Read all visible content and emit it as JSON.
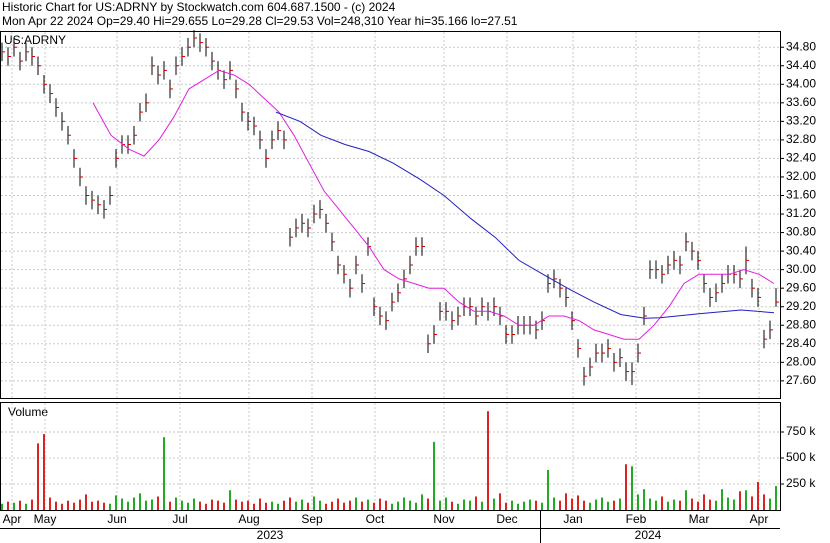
{
  "header": {
    "title": "Historic Chart for US:ADRNY by Stockwatch.com 604.687.1500 - (c) 2024",
    "subtitle": "Mon Apr 22 2024  Op=29.40  Hi=29.655  Lo=29.28  Cl=29.53  Vol=248,310  Year hi=35.166  lo=27.51"
  },
  "chart_data": [
    {
      "type": "ohlc",
      "label": "US:ADRNY",
      "color": "#000000",
      "close_color": "#cc0000",
      "grid": true,
      "xlim": [
        0,
        260
      ],
      "ylim": [
        27.23,
        35.15
      ],
      "yticks": [
        {
          "value": 27.6,
          "label": "27.60"
        },
        {
          "value": 28.0,
          "label": "28.00"
        },
        {
          "value": 28.4,
          "label": "28.40"
        },
        {
          "value": 28.8,
          "label": "28.80"
        },
        {
          "value": 29.2,
          "label": "29.20"
        },
        {
          "value": 29.6,
          "label": "29.60"
        },
        {
          "value": 30.0,
          "label": "30.00"
        },
        {
          "value": 30.4,
          "label": "30.40"
        },
        {
          "value": 30.8,
          "label": "30.80"
        },
        {
          "value": 31.2,
          "label": "31.20"
        },
        {
          "value": 31.6,
          "label": "31.60"
        },
        {
          "value": 32.0,
          "label": "32.00"
        },
        {
          "value": 32.4,
          "label": "32.40"
        },
        {
          "value": 32.8,
          "label": "32.80"
        },
        {
          "value": 33.2,
          "label": "33.20"
        },
        {
          "value": 33.6,
          "label": "33.60"
        },
        {
          "value": 34.0,
          "label": "34.00"
        },
        {
          "value": 34.4,
          "label": "34.40"
        },
        {
          "value": 34.8,
          "label": "34.80"
        }
      ],
      "x": [
        0,
        2,
        4,
        6,
        8,
        10,
        12,
        14,
        16,
        18,
        20,
        22,
        24,
        26,
        28,
        30,
        32,
        34,
        36,
        38,
        40,
        42,
        44,
        46,
        48,
        50,
        52,
        54,
        56,
        58,
        60,
        62,
        64,
        66,
        68,
        70,
        72,
        74,
        76,
        78,
        80,
        82,
        84,
        86,
        88,
        90,
        92,
        94,
        96,
        98,
        100,
        102,
        104,
        106,
        108,
        110,
        112,
        114,
        116,
        118,
        120,
        122,
        124,
        126,
        128,
        130,
        132,
        134,
        136,
        138,
        140,
        142,
        144,
        146,
        148,
        150,
        152,
        154,
        156,
        158,
        160,
        162,
        164,
        166,
        168,
        170,
        172,
        174,
        176,
        178,
        180,
        182,
        184,
        186,
        188,
        190,
        192,
        194,
        196,
        198,
        200,
        202,
        204,
        206,
        208,
        210,
        212,
        214,
        216,
        218,
        220,
        222,
        224,
        226,
        228,
        230,
        232,
        234,
        236,
        238,
        240,
        242,
        244,
        246,
        248,
        250,
        252,
        254,
        256,
        258
      ],
      "high": [
        34.9,
        34.8,
        35.0,
        34.7,
        34.9,
        34.8,
        34.6,
        34.2,
        34.0,
        33.7,
        33.4,
        33.1,
        32.6,
        32.2,
        31.8,
        31.7,
        31.6,
        31.5,
        31.8,
        32.6,
        32.9,
        32.9,
        33.1,
        33.6,
        33.8,
        34.6,
        34.4,
        34.5,
        34.1,
        34.6,
        34.8,
        35.0,
        35.17,
        35.1,
        35.0,
        34.7,
        34.5,
        34.3,
        34.5,
        34.1,
        33.6,
        33.4,
        33.3,
        33.0,
        32.6,
        33.0,
        33.2,
        33.0,
        30.9,
        31.1,
        31.2,
        31.1,
        31.4,
        31.5,
        31.2,
        30.8,
        30.3,
        30.1,
        29.8,
        30.3,
        29.9,
        30.7,
        29.4,
        29.2,
        29.1,
        29.5,
        29.7,
        30.0,
        30.3,
        30.7,
        30.7,
        28.6,
        28.8,
        29.3,
        29.3,
        29.1,
        29.2,
        29.4,
        29.4,
        29.2,
        29.4,
        29.3,
        29.4,
        29.2,
        28.8,
        28.8,
        29.0,
        29.0,
        29.0,
        28.9,
        29.1,
        29.9,
        30.0,
        29.8,
        29.6,
        29.1,
        28.5,
        27.9,
        28.1,
        28.4,
        28.4,
        28.5,
        28.2,
        28.3,
        28.0,
        28.0,
        28.4,
        29.2,
        30.2,
        30.2,
        30.1,
        30.3,
        30.4,
        30.3,
        30.8,
        30.6,
        30.4,
        29.9,
        29.6,
        29.7,
        29.9,
        30.1,
        30.1,
        30.0,
        30.5,
        29.8,
        29.6,
        28.7,
        28.9,
        29.6
      ],
      "low": [
        34.5,
        34.4,
        34.6,
        34.3,
        34.5,
        34.4,
        34.2,
        33.8,
        33.6,
        33.3,
        33.0,
        32.7,
        32.2,
        31.8,
        31.4,
        31.3,
        31.2,
        31.1,
        31.4,
        32.2,
        32.5,
        32.5,
        32.7,
        33.2,
        33.4,
        34.2,
        34.0,
        34.1,
        33.7,
        34.2,
        34.4,
        34.6,
        34.8,
        34.7,
        34.6,
        34.3,
        34.1,
        33.9,
        34.1,
        33.7,
        33.2,
        33.0,
        32.9,
        32.6,
        32.2,
        32.6,
        32.8,
        32.6,
        30.5,
        30.7,
        30.8,
        30.7,
        31.0,
        31.1,
        30.8,
        30.4,
        29.9,
        29.7,
        29.4,
        29.9,
        29.5,
        30.3,
        29.0,
        28.8,
        28.7,
        29.1,
        29.3,
        29.6,
        29.9,
        30.3,
        30.3,
        28.2,
        28.4,
        28.9,
        28.9,
        28.7,
        28.8,
        29.0,
        29.0,
        28.8,
        29.0,
        28.9,
        29.0,
        28.8,
        28.4,
        28.4,
        28.6,
        28.6,
        28.6,
        28.5,
        28.7,
        29.5,
        29.6,
        29.4,
        29.2,
        28.7,
        28.1,
        27.5,
        27.7,
        28.0,
        28.0,
        28.1,
        27.8,
        27.9,
        27.6,
        27.51,
        28.0,
        28.8,
        29.8,
        29.8,
        29.7,
        29.9,
        30.0,
        29.9,
        30.4,
        30.2,
        30.0,
        29.5,
        29.2,
        29.3,
        29.5,
        29.7,
        29.7,
        29.6,
        29.9,
        29.4,
        29.2,
        28.3,
        28.5,
        29.2
      ],
      "close": [
        34.7,
        34.6,
        34.8,
        34.5,
        34.7,
        34.6,
        34.4,
        34.0,
        33.8,
        33.5,
        33.2,
        32.9,
        32.4,
        32.0,
        31.6,
        31.5,
        31.4,
        31.3,
        31.6,
        32.4,
        32.7,
        32.7,
        32.9,
        33.4,
        33.6,
        34.4,
        34.2,
        34.3,
        33.9,
        34.4,
        34.6,
        34.8,
        35.0,
        34.9,
        34.8,
        34.5,
        34.3,
        34.1,
        34.3,
        33.9,
        33.4,
        33.2,
        33.1,
        32.8,
        32.4,
        32.8,
        33.0,
        32.8,
        30.7,
        30.9,
        31.0,
        30.9,
        31.2,
        31.3,
        31.0,
        30.6,
        30.1,
        29.9,
        29.6,
        30.1,
        29.7,
        30.5,
        29.2,
        29.0,
        28.9,
        29.3,
        29.5,
        29.8,
        30.1,
        30.5,
        30.5,
        28.4,
        28.6,
        29.1,
        29.1,
        28.9,
        29.0,
        29.2,
        29.2,
        29.0,
        29.2,
        29.1,
        29.2,
        29.0,
        28.6,
        28.6,
        28.8,
        28.8,
        28.8,
        28.7,
        28.9,
        29.7,
        29.8,
        29.6,
        29.4,
        28.9,
        28.3,
        27.7,
        27.9,
        28.2,
        28.2,
        28.3,
        28.0,
        28.1,
        27.8,
        27.8,
        28.2,
        29.0,
        30.0,
        30.0,
        29.9,
        30.1,
        30.2,
        30.1,
        30.6,
        30.4,
        30.2,
        29.7,
        29.4,
        29.5,
        29.7,
        29.9,
        29.9,
        29.8,
        30.2,
        29.6,
        29.4,
        28.5,
        28.7,
        29.3
      ],
      "lines": [
        {
          "color": "#e020e0",
          "x": [
            31,
            37,
            43,
            48,
            53,
            58,
            63,
            68,
            73,
            78,
            83,
            88,
            93,
            98,
            103,
            108,
            113,
            118,
            123,
            128,
            133,
            138,
            143,
            148,
            153,
            158,
            163,
            168,
            173,
            178,
            183,
            188,
            193,
            198,
            203,
            208,
            213,
            218,
            223,
            228,
            233,
            238,
            243,
            248,
            253,
            258
          ],
          "values": [
            33.6,
            32.9,
            32.6,
            32.45,
            32.8,
            33.3,
            33.9,
            34.1,
            34.3,
            34.2,
            34.0,
            33.7,
            33.4,
            32.9,
            32.3,
            31.7,
            31.3,
            30.9,
            30.5,
            30.0,
            29.8,
            29.7,
            29.6,
            29.6,
            29.3,
            29.1,
            29.1,
            29.0,
            28.8,
            28.8,
            29.0,
            29.0,
            28.9,
            28.7,
            28.6,
            28.5,
            28.5,
            28.8,
            29.2,
            29.7,
            29.9,
            29.9,
            29.9,
            30.0,
            29.9,
            29.7
          ]
        },
        {
          "color": "#2020c0",
          "x": [
            92,
            100,
            107,
            115,
            123,
            131,
            140,
            148,
            157,
            165,
            173,
            181,
            190,
            198,
            207,
            215,
            220,
            233,
            247,
            258
          ],
          "values": [
            33.4,
            33.2,
            32.9,
            32.7,
            32.55,
            32.3,
            31.95,
            31.6,
            31.1,
            30.7,
            30.2,
            29.9,
            29.57,
            29.3,
            29.03,
            28.95,
            28.96,
            29.05,
            29.13,
            29.07
          ]
        }
      ]
    },
    {
      "type": "volume",
      "label": "Volume",
      "up_color": "#22aa22",
      "down_color": "#dd2222",
      "ylim": [
        0,
        1000
      ],
      "yticks": [
        {
          "value": 250,
          "label": "250 k"
        },
        {
          "value": 500,
          "label": "500 k"
        },
        {
          "value": 750,
          "label": "750 k"
        }
      ],
      "values": [
        60,
        80,
        70,
        90,
        60,
        100,
        640,
        730,
        120,
        80,
        60,
        90,
        70,
        100,
        150,
        80,
        90,
        70,
        60,
        140,
        110,
        80,
        120,
        160,
        90,
        100,
        130,
        700,
        80,
        120,
        90,
        70,
        110,
        80,
        60,
        100,
        90,
        70,
        190,
        100,
        80,
        90,
        60,
        110,
        70,
        80,
        60,
        90,
        120,
        80,
        100,
        70,
        130,
        90,
        60,
        80,
        110,
        70,
        90,
        120,
        80,
        100,
        70,
        110,
        90,
        60,
        80,
        120,
        90,
        70,
        150,
        110,
        655,
        90,
        120,
        80,
        60,
        100,
        90,
        130,
        80,
        950,
        110,
        160,
        70,
        90,
        60,
        80,
        100,
        90,
        70,
        385,
        120,
        90,
        160,
        110,
        140,
        90,
        70,
        100,
        120,
        80,
        90,
        110,
        440,
        420,
        150,
        200,
        110,
        90,
        130,
        80,
        100,
        90,
        190,
        110,
        80,
        150,
        100,
        90,
        200,
        120,
        100,
        180,
        190,
        130,
        270,
        150,
        110,
        230
      ],
      "xticks": [
        {
          "value": 4,
          "label": "Apr"
        },
        {
          "value": 15,
          "label": "May"
        },
        {
          "value": 39,
          "label": "Jun"
        },
        {
          "value": 60,
          "label": "Jul"
        },
        {
          "value": 83,
          "label": "Aug"
        },
        {
          "value": 104,
          "label": "Sep"
        },
        {
          "value": 125,
          "label": "Oct"
        },
        {
          "value": 148,
          "label": "Nov"
        },
        {
          "value": 169,
          "label": "Dec"
        },
        {
          "value": 191,
          "label": "Jan"
        },
        {
          "value": 212,
          "label": "Feb"
        },
        {
          "value": 233,
          "label": "Mar"
        },
        {
          "value": 253,
          "label": "Apr"
        }
      ],
      "year_ticks": [
        {
          "value": 90,
          "label": "2023"
        },
        {
          "value": 216,
          "label": "2024"
        }
      ]
    }
  ]
}
